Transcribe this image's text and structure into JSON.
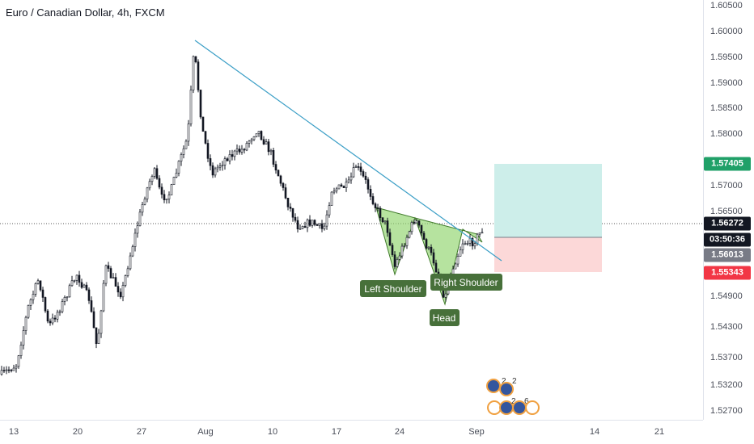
{
  "header": {
    "title": "Euro / Canadian Dollar, 4h, FXCM"
  },
  "price_axis": {
    "ticks": [
      "1.60500",
      "1.60000",
      "1.59500",
      "1.59000",
      "1.58500",
      "1.58000",
      "1.57000",
      "1.56500",
      "1.54900",
      "1.54300",
      "1.53700",
      "1.53200",
      "1.52700"
    ],
    "badges": {
      "target": "1.57405",
      "current": "1.56272",
      "countdown": "03:50:36",
      "entry": "1.56013",
      "stop": "1.55343"
    }
  },
  "time_axis": {
    "ticks": [
      "13",
      "20",
      "27",
      "Aug",
      "10",
      "17",
      "24",
      "Sep",
      "14",
      "21"
    ]
  },
  "annotations": {
    "left_shoulder": "Left Shoulder",
    "head": "Head",
    "right_shoulder": "Right Shoulder"
  },
  "events": {
    "row1": [
      "2",
      "2"
    ],
    "row2": [
      "2",
      "6"
    ]
  },
  "colors": {
    "up": "#131722",
    "down": "#131722",
    "trendline": "#3a9ec6",
    "pattern_fill": "#8fd46b",
    "label_bg": "#47703a",
    "target_zone": "#cdeeea",
    "stop_zone": "#fcd8d8",
    "badge_target": "#20a068",
    "badge_current": "#131722",
    "badge_entry": "#787b86",
    "badge_stop": "#f23645"
  }
}
